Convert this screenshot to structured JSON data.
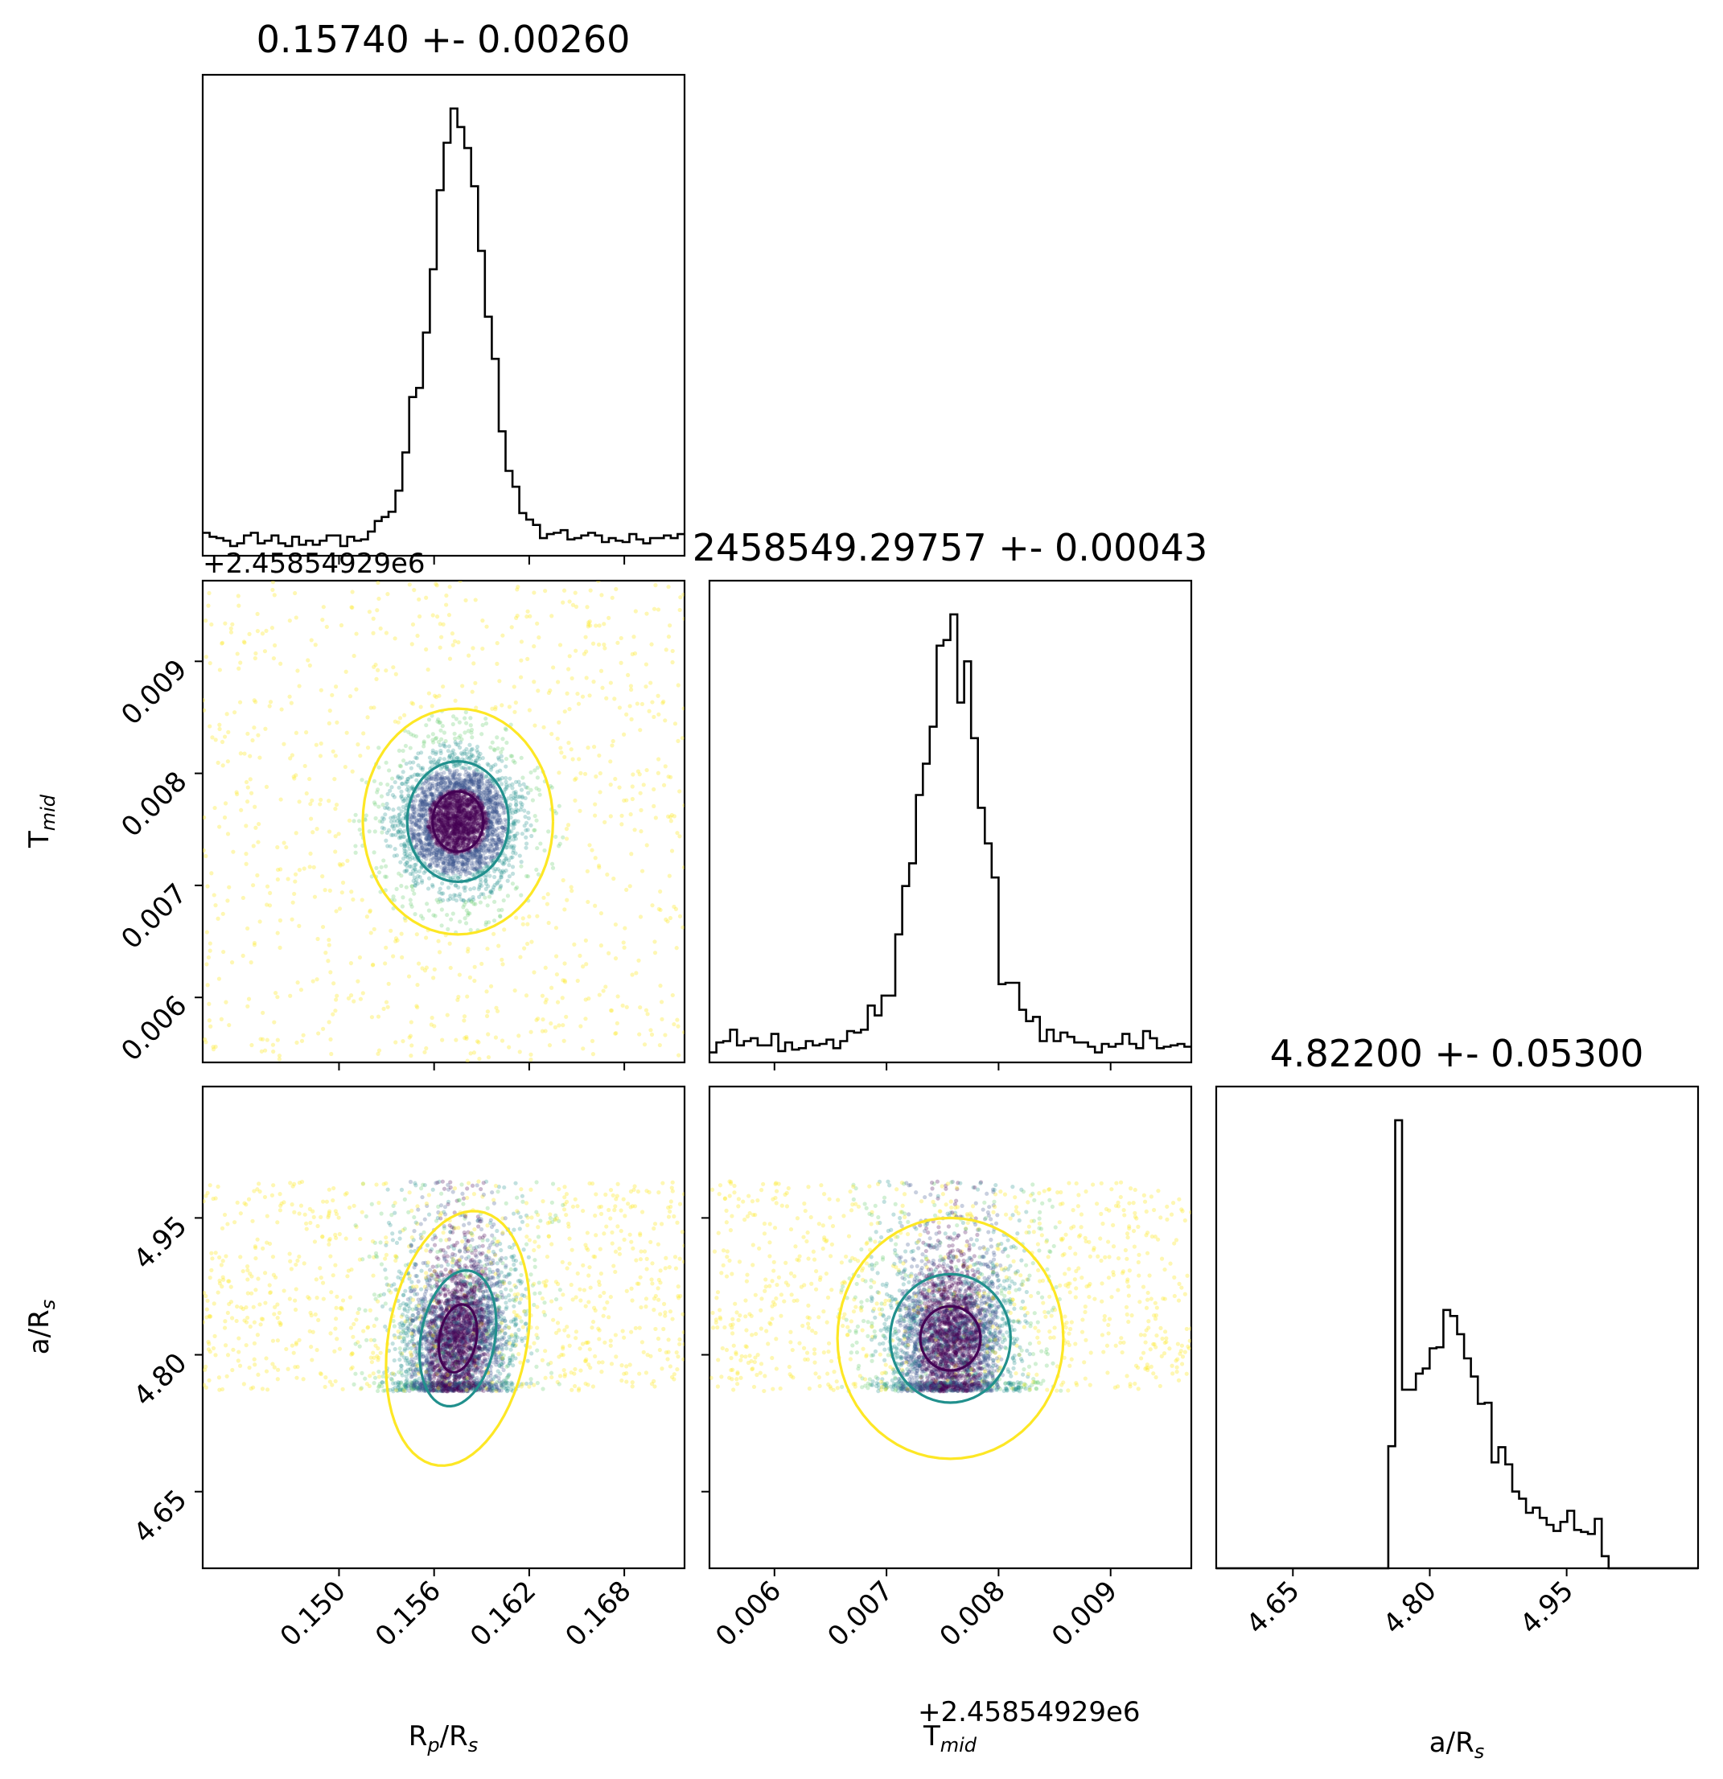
{
  "chart_data": {
    "type": "scatter",
    "subtype": "corner-plot",
    "parameters": [
      {
        "key": "rp",
        "label_main": "R",
        "label_sub": "p",
        "label_tail": "/R",
        "label_tail_sub": "s",
        "range": [
          0.1414,
          0.1718
        ],
        "ticks": [
          0.15,
          0.156,
          0.162,
          0.168
        ],
        "tick_labels": [
          "0.150",
          "0.156",
          "0.162",
          "0.168"
        ]
      },
      {
        "key": "tmid",
        "label_main": "T",
        "label_sub": "mid",
        "label_tail": "",
        "label_tail_sub": "",
        "range": [
          0.00542,
          0.00972
        ],
        "ticks": [
          0.006,
          0.007,
          0.008,
          0.009
        ],
        "tick_labels": [
          "0.006",
          "0.007",
          "0.008",
          "0.009"
        ],
        "offset_text": "+2.45854929e6"
      },
      {
        "key": "ars",
        "label_main": "a/R",
        "label_sub": "s",
        "label_tail": "",
        "label_tail_sub": "",
        "range": [
          4.566,
          5.094
        ],
        "ticks": [
          4.65,
          4.8,
          4.95
        ],
        "tick_labels": [
          "4.65",
          "4.80",
          "4.95"
        ]
      }
    ],
    "titles": [
      "0.15740 +- 0.00260",
      "2458549.29757 +- 0.00043",
      "4.82200 +- 0.05300"
    ],
    "marginals": [
      {
        "param": "rp",
        "peak": 0.1575,
        "width": 0.0016,
        "tail": 0.006
      },
      {
        "param": "tmid",
        "peak": 0.00757,
        "width": 0.00024,
        "tail": 0.0011
      },
      {
        "param": "ars",
        "peak": 4.818,
        "width": 0.04,
        "tail": 0.1,
        "support": [
          4.76,
          4.99
        ]
      }
    ],
    "correlations": {
      "rp_ars": 0.35,
      "tmid_ars": 0.0,
      "rp_tmid": 0.0
    },
    "contour_levels_colors": [
      "#fde725",
      "#21908d",
      "#440154"
    ],
    "scatter_colormap": [
      "#440154",
      "#3b528b",
      "#21908d",
      "#5dc863",
      "#fde725"
    ],
    "n_samples": 4200,
    "grid": false
  }
}
